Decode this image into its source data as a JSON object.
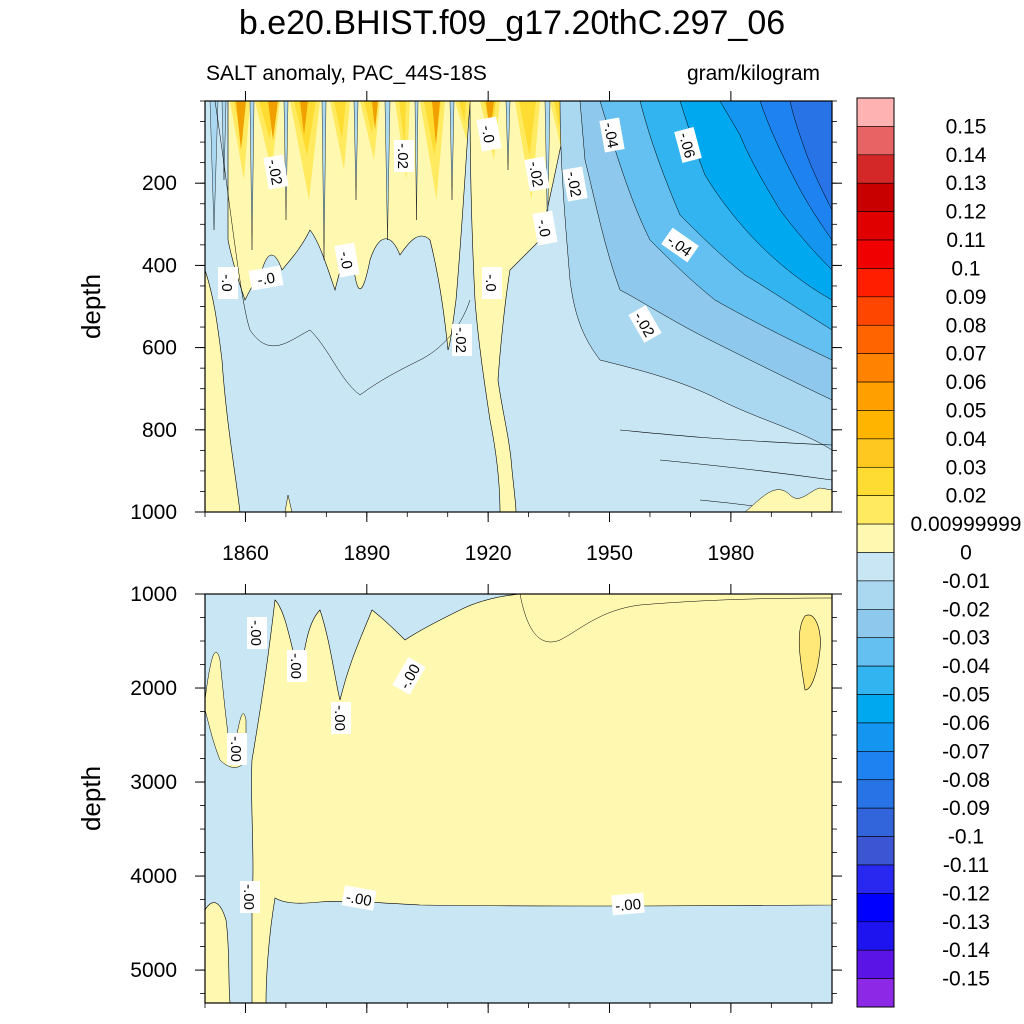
{
  "title": "b.e20.BHIST.f09_g17.20thC.297_06",
  "subtitle_left": "SALT anomaly, PAC_44S-18S",
  "subtitle_right": "gram/kilogram",
  "chart_data": [
    {
      "type": "heatmap",
      "panel": "upper",
      "variable": "SALT anomaly",
      "region": "PAC_44S-18S",
      "units": "gram/kilogram",
      "ylabel": "depth",
      "xlabel": "",
      "xlim": [
        1850,
        2005
      ],
      "ylim": [
        1000,
        0
      ],
      "x_ticks": [
        1860,
        1890,
        1920,
        1950,
        1980
      ],
      "y_ticks": [
        200,
        400,
        600,
        800,
        1000
      ],
      "contour_labels": [
        "-.02",
        "-.0",
        "-.02",
        "-.0",
        "-.0",
        "-.0",
        "-.02",
        "-.0",
        "-.0",
        "-.02",
        "-.04",
        "-.02",
        "-.06",
        "-.04",
        "-.02"
      ]
    },
    {
      "type": "heatmap",
      "panel": "lower",
      "variable": "SALT anomaly",
      "region": "PAC_44S-18S",
      "units": "gram/kilogram",
      "ylabel": "depth",
      "xlabel": "",
      "xlim": [
        1850,
        2005
      ],
      "ylim": [
        5350,
        1000
      ],
      "x_ticks": [
        1860,
        1890,
        1920,
        1950,
        1980
      ],
      "y_ticks": [
        1000,
        2000,
        3000,
        4000,
        5000
      ],
      "contour_labels": [
        "-.00",
        "-.00",
        "-.00",
        "-.00",
        "-.00",
        "-.00",
        "-.00",
        "-.00"
      ]
    }
  ],
  "colorbar": {
    "labels": [
      "0.15",
      "0.14",
      "0.13",
      "0.12",
      "0.11",
      "0.1",
      "0.09",
      "0.08",
      "0.07",
      "0.06",
      "0.05",
      "0.04",
      "0.03",
      "0.02",
      "0.00999999",
      "0",
      "-0.01",
      "-0.02",
      "-0.03",
      "-0.04",
      "-0.05",
      "-0.06",
      "-0.07",
      "-0.08",
      "-0.09",
      "-0.1",
      "-0.11",
      "-0.12",
      "-0.13",
      "-0.14",
      "-0.15"
    ],
    "colors": [
      "#ffb2b2",
      "#e86464",
      "#d42828",
      "#c80000",
      "#e00000",
      "#f00000",
      "#ff1e00",
      "#ff4600",
      "#ff6400",
      "#ff8200",
      "#ffa000",
      "#ffb400",
      "#ffc820",
      "#ffdc32",
      "#ffea60",
      "#fff8b0",
      "#c8e6f4",
      "#aad8f0",
      "#8ec8ec",
      "#64c0f0",
      "#32b4f0",
      "#00a8f0",
      "#1496f0",
      "#1e82f0",
      "#2873e6",
      "#3264dc",
      "#3c55d2",
      "#2828f0",
      "#0000ff",
      "#1e14f0",
      "#5a14e6",
      "#8c28e6"
    ]
  }
}
